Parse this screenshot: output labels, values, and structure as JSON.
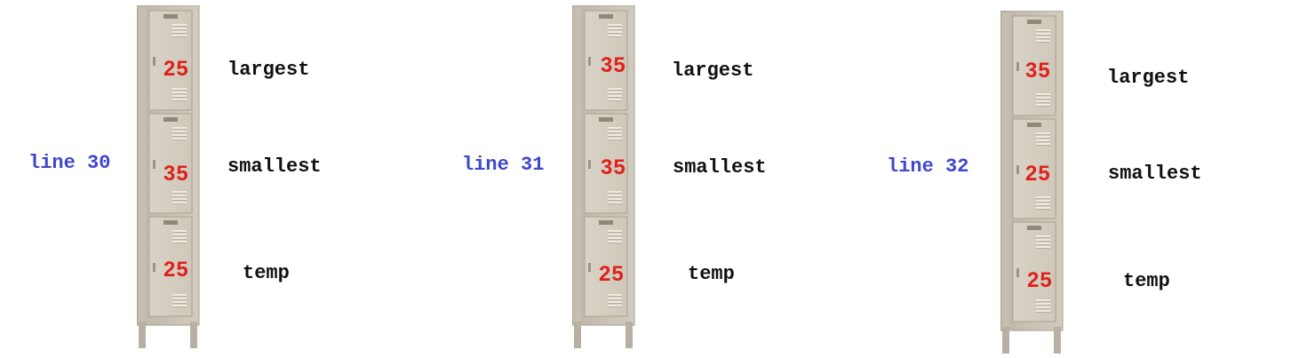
{
  "panels": [
    {
      "line_label": "line 30",
      "values": {
        "largest": "25",
        "smallest": "35",
        "temp": "25"
      },
      "var_labels": {
        "largest": "largest",
        "smallest": "smallest",
        "temp": "temp"
      }
    },
    {
      "line_label": "line 31",
      "values": {
        "largest": "35",
        "smallest": "35",
        "temp": "25"
      },
      "var_labels": {
        "largest": "largest",
        "smallest": "smallest",
        "temp": "temp"
      }
    },
    {
      "line_label": "line 32",
      "values": {
        "largest": "35",
        "smallest": "25",
        "temp": "25"
      },
      "var_labels": {
        "largest": "largest",
        "smallest": "smallest",
        "temp": "temp"
      }
    }
  ]
}
